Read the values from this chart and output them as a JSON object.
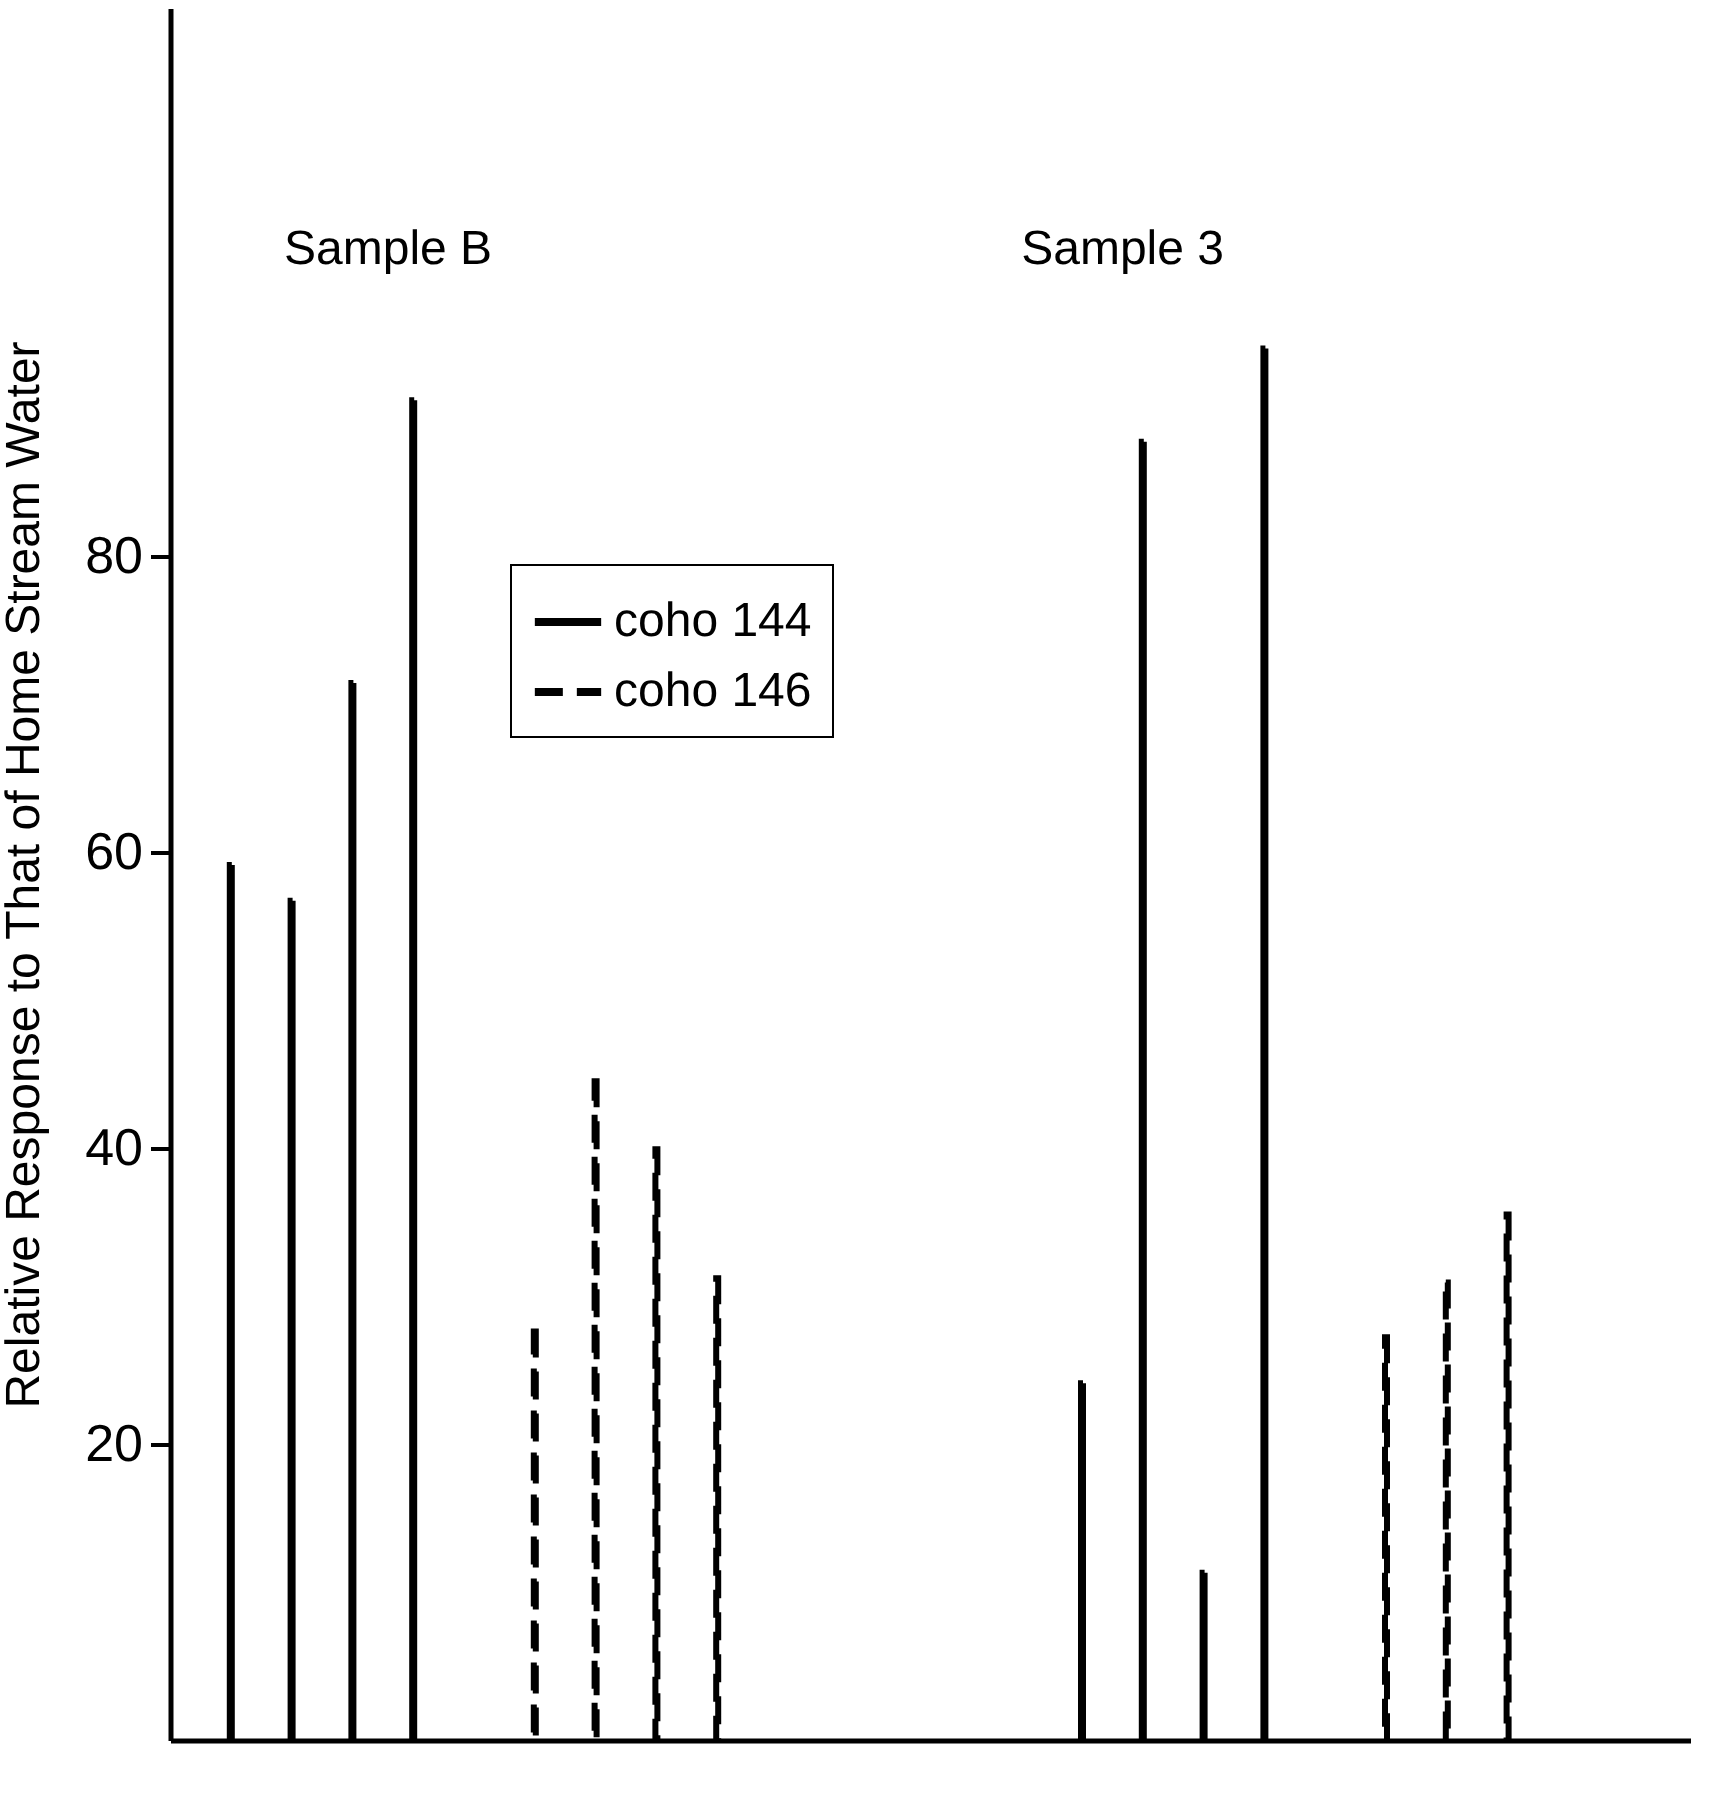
{
  "chart_data": {
    "type": "bar",
    "ylabel": "Relative Response to That of Home Stream Water",
    "annotations": [
      "Sample B",
      "Sample 3"
    ],
    "categories": [
      null,
      null,
      null,
      null,
      null,
      null,
      null,
      null,
      null,
      null,
      null,
      null,
      null,
      null,
      null,
      null,
      null,
      null,
      null,
      null,
      null,
      null,
      null,
      null
    ],
    "series": [
      {
        "name": "coho 144",
        "color": "#000000",
        "line_style": "solid",
        "values": [
          59.1,
          56.7,
          71.4,
          90.5,
          null,
          null,
          null,
          null,
          null,
          null,
          null,
          null,
          null,
          null,
          24.1,
          87.7,
          11.3,
          94.0,
          null,
          null,
          null,
          null,
          null,
          null
        ]
      },
      {
        "name": "coho 146",
        "color": "#000000",
        "line_style": "dashed",
        "values": [
          null,
          null,
          null,
          null,
          null,
          27.6,
          44.5,
          39.9,
          31.2,
          null,
          null,
          null,
          null,
          null,
          null,
          null,
          null,
          null,
          null,
          27.2,
          30.9,
          35.5,
          null,
          null
        ]
      }
    ],
    "ylim": [
      0,
      117
    ],
    "yticks": [
      20,
      40,
      60,
      80
    ],
    "tick_labels": "y",
    "legend": "top"
  }
}
